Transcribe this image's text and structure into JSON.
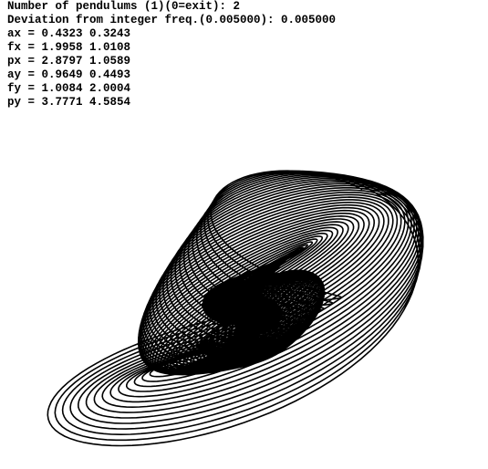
{
  "console": {
    "lines": [
      "Number of pendulums (1)(0=exit): 2",
      "Deviation from integer freq.(0.005000): 0.005000",
      "ax = 0.4323 0.3243",
      "fx = 1.9958 1.0108",
      "px = 2.8797 1.0589",
      "ay = 0.9649 0.4493",
      "fy = 1.0084 2.0004",
      "py = 3.7771 4.5854"
    ]
  }
}
